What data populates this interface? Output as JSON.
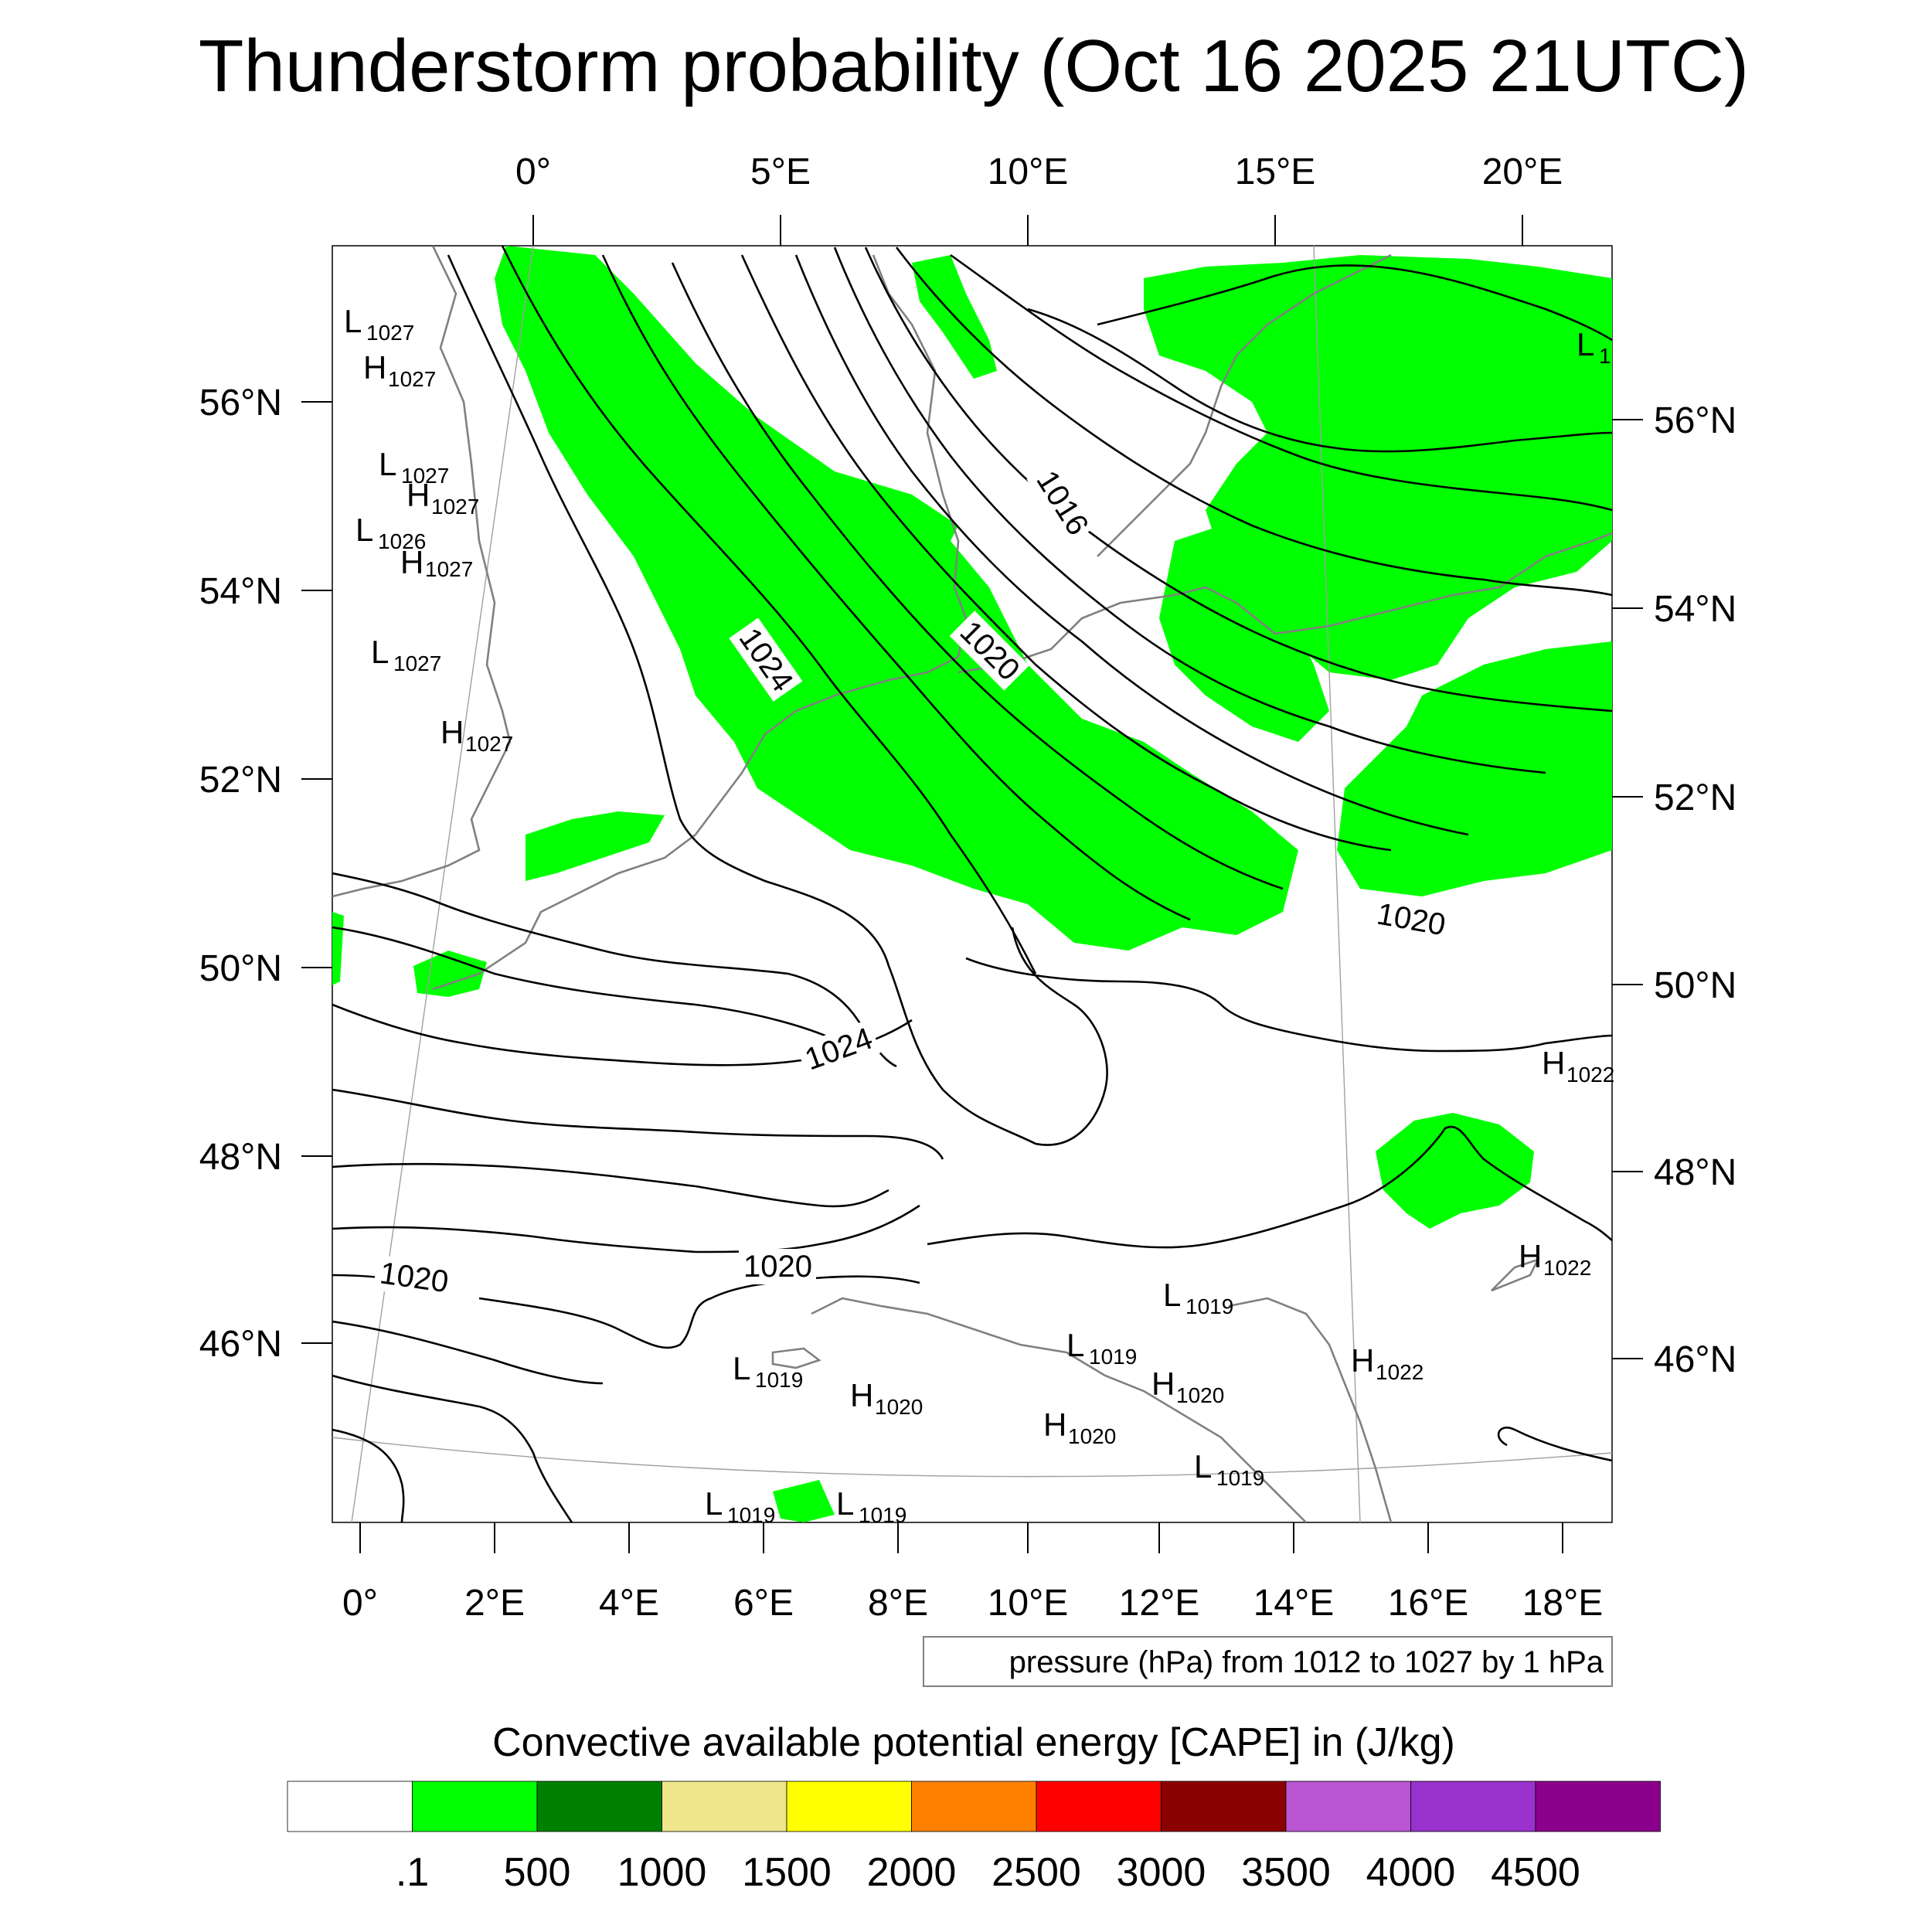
{
  "title": "Thunderstorm probability (Oct 16 2025 21UTC)",
  "top_axis_labels": [
    "0°",
    "5°E",
    "10°E",
    "15°E",
    "20°E"
  ],
  "bottom_axis_labels": [
    "0°",
    "2°E",
    "4°E",
    "6°E",
    "8°E",
    "10°E",
    "12°E",
    "14°E",
    "16°E",
    "18°E"
  ],
  "left_axis_labels": [
    "56°N",
    "54°N",
    "52°N",
    "50°N",
    "48°N",
    "46°N"
  ],
  "right_axis_labels": [
    "56°N",
    "54°N",
    "52°N",
    "50°N",
    "48°N",
    "46°N"
  ],
  "contour_info": "pressure (hPa) from 1012 to 1027 by 1 hPa",
  "contour_labels": [
    "1016",
    "1020",
    "1024",
    "1020",
    "1024",
    "1020",
    "1020"
  ],
  "pressure_centers": [
    {
      "type": "L",
      "value": "1027"
    },
    {
      "type": "H",
      "value": "1027"
    },
    {
      "type": "L",
      "value": "1027"
    },
    {
      "type": "H",
      "value": "1027"
    },
    {
      "type": "L",
      "value": "1026"
    },
    {
      "type": "H",
      "value": "1027"
    },
    {
      "type": "L",
      "value": "1027"
    },
    {
      "type": "H",
      "value": "1027"
    },
    {
      "type": "L",
      "value": "1"
    },
    {
      "type": "H",
      "value": "1022"
    },
    {
      "type": "H",
      "value": "1022"
    },
    {
      "type": "H",
      "value": "1022"
    },
    {
      "type": "L",
      "value": "1019"
    },
    {
      "type": "L",
      "value": "1019"
    },
    {
      "type": "L",
      "value": "1019"
    },
    {
      "type": "H",
      "value": "1020"
    },
    {
      "type": "H",
      "value": "1020"
    },
    {
      "type": "H",
      "value": "1020"
    },
    {
      "type": "L",
      "value": "1019"
    },
    {
      "type": "L",
      "value": "1019"
    },
    {
      "type": "L",
      "value": "1019"
    }
  ],
  "colorbar": {
    "title": "Convective available potential energy [CAPE] in (J/kg)",
    "colors": [
      "#ffffff",
      "#00ff00",
      "#008000",
      "#f0e68c",
      "#ffff00",
      "#ff8000",
      "#ff0000",
      "#8b0000",
      "#ba55d3",
      "#9932cc",
      "#8b008b"
    ],
    "labels": [
      ".1",
      "500",
      "1000",
      "1500",
      "2000",
      "2500",
      "3000",
      "3500",
      "4000",
      "4500"
    ]
  },
  "colors": {
    "cape_fill": "#00ff00",
    "isobar": "#000000",
    "coastline": "#808080"
  }
}
